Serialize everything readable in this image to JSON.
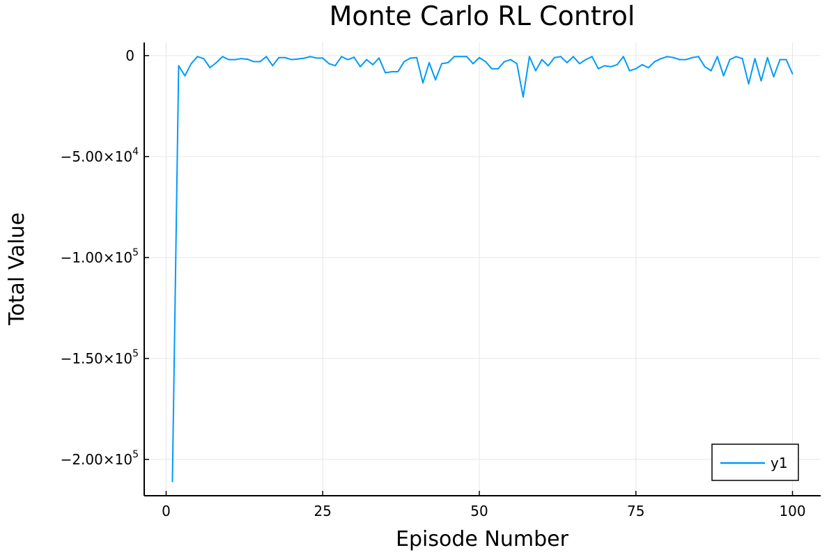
{
  "chart_data": {
    "type": "line",
    "title": "Monte Carlo RL Control",
    "xlabel": "Episode Number",
    "ylabel": "Total Value",
    "xlim": [
      -3.5,
      104.5
    ],
    "ylim": [
      -218000,
      6500
    ],
    "xticks": [
      0,
      25,
      50,
      75,
      100
    ],
    "xtick_labels": [
      "0",
      "25",
      "50",
      "75",
      "100"
    ],
    "yticks": [
      0,
      -50000,
      -100000,
      -150000,
      -200000
    ],
    "ytick_labels": [
      {
        "mantissa": "0",
        "exp": ""
      },
      {
        "mantissa": "−5.00×10",
        "exp": "4"
      },
      {
        "mantissa": "−1.00×10",
        "exp": "5"
      },
      {
        "mantissa": "−1.50×10",
        "exp": "5"
      },
      {
        "mantissa": "−2.00×10",
        "exp": "5"
      }
    ],
    "grid": true,
    "legend_position": "bottom-right",
    "series": [
      {
        "name": "y1",
        "color": "#009af9",
        "x": [
          1,
          2,
          3,
          4,
          5,
          6,
          7,
          8,
          9,
          10,
          11,
          12,
          13,
          14,
          15,
          16,
          17,
          18,
          19,
          20,
          21,
          22,
          23,
          24,
          25,
          26,
          27,
          28,
          29,
          30,
          31,
          32,
          33,
          34,
          35,
          36,
          37,
          38,
          39,
          40,
          41,
          42,
          43,
          44,
          45,
          46,
          47,
          48,
          49,
          50,
          51,
          52,
          53,
          54,
          55,
          56,
          57,
          58,
          59,
          60,
          61,
          62,
          63,
          64,
          65,
          66,
          67,
          68,
          69,
          70,
          71,
          72,
          73,
          74,
          75,
          76,
          77,
          78,
          79,
          80,
          81,
          82,
          83,
          84,
          85,
          86,
          87,
          88,
          89,
          90,
          91,
          92,
          93,
          94,
          95,
          96,
          97,
          98,
          99,
          100
        ],
        "values": [
          -211000,
          -5000,
          -10000,
          -4000,
          -500,
          -1500,
          -6000,
          -3500,
          -500,
          -2000,
          -2000,
          -1500,
          -1800,
          -3000,
          -3000,
          -500,
          -5000,
          -1000,
          -1000,
          -2000,
          -1700,
          -1300,
          -500,
          -1200,
          -1200,
          -4000,
          -5000,
          -500,
          -2000,
          -800,
          -5500,
          -2000,
          -4500,
          -1200,
          -8500,
          -8000,
          -8000,
          -3000,
          -1200,
          -1000,
          -13500,
          -3500,
          -12000,
          -4000,
          -3500,
          -500,
          -500,
          -500,
          -4000,
          -1000,
          -3000,
          -6500,
          -6500,
          -3000,
          -2000,
          -4000,
          -20500,
          -500,
          -7500,
          -2000,
          -5000,
          -1000,
          -500,
          -3500,
          -500,
          -4000,
          -2000,
          -500,
          -6500,
          -5000,
          -5500,
          -4500,
          -500,
          -7500,
          -6500,
          -4500,
          -6000,
          -3000,
          -1500,
          -500,
          -1000,
          -2000,
          -2000,
          -1000,
          -500,
          -5500,
          -7500,
          -500,
          -10000,
          -2000,
          -500,
          -1500,
          -14000,
          -1500,
          -12500,
          -1000,
          -10500,
          -2000,
          -2000,
          -9000
        ]
      }
    ]
  }
}
